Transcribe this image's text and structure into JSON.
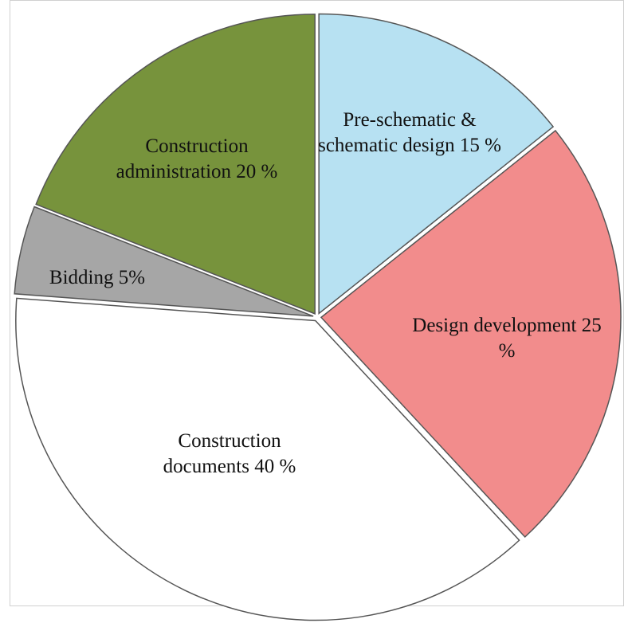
{
  "chart_data": {
    "type": "pie",
    "categories": [
      "Pre-schematic & schematic design",
      "Design development",
      "Construction documents",
      "Bidding",
      "Construction administration"
    ],
    "values": [
      15,
      25,
      40,
      5,
      20
    ],
    "value_labels": [
      "15 %",
      "25 %",
      "40 %",
      "5%",
      "20 %"
    ],
    "colors": [
      "#b7e1f2",
      "#f28c8c",
      "#ffffff",
      "#a6a6a6",
      "#77933c"
    ]
  }
}
